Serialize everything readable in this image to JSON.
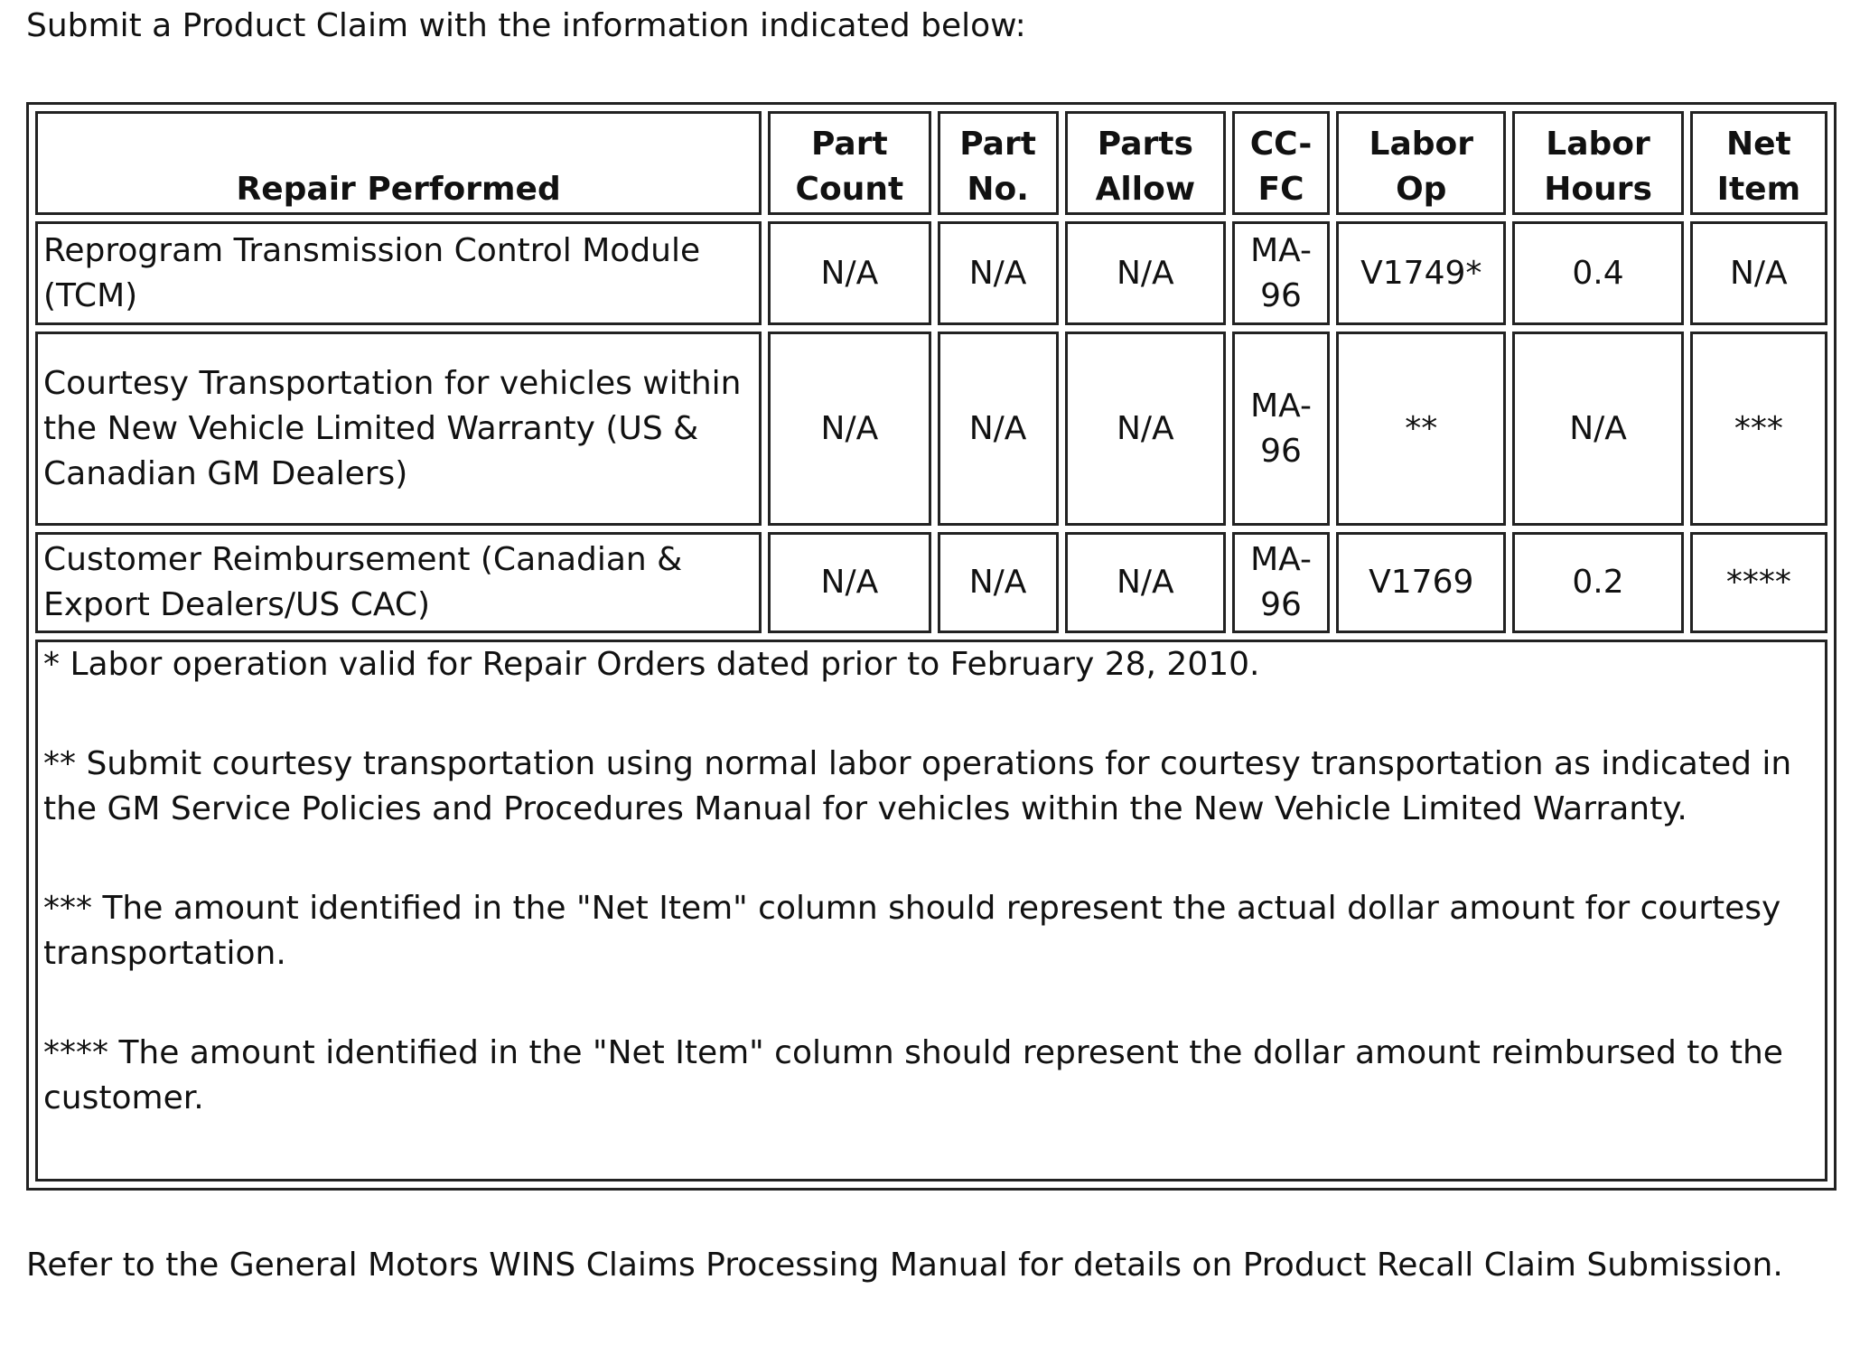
{
  "intro": "Submit a Product Claim with the information indicated below:",
  "table": {
    "headers": [
      {
        "line1": "",
        "line2": "Repair Performed"
      },
      {
        "line1": "Part",
        "line2": "Count"
      },
      {
        "line1": "Part",
        "line2": "No."
      },
      {
        "line1": "Parts",
        "line2": "Allow"
      },
      {
        "line1": "CC-",
        "line2": "FC"
      },
      {
        "line1": "Labor",
        "line2": "Op"
      },
      {
        "line1": "Labor",
        "line2": "Hours"
      },
      {
        "line1": "Net",
        "line2": "Item"
      }
    ],
    "rows": [
      {
        "repair": "Reprogram Transmission Control Module (TCM)",
        "part_count": "N/A",
        "part_no": "N/A",
        "parts_allow": "N/A",
        "ccfc_1": "MA-",
        "ccfc_2": "96",
        "labor_op": "V1749*",
        "labor_hours": "0.4",
        "net_item": "N/A"
      },
      {
        "repair": "Courtesy Transportation for vehicles within the New Vehicle Limited Warranty (US & Canadian GM Dealers)",
        "part_count": "N/A",
        "part_no": "N/A",
        "parts_allow": "N/A",
        "ccfc_1": "MA-",
        "ccfc_2": "96",
        "labor_op": "**",
        "labor_hours": "N/A",
        "net_item": "***"
      },
      {
        "repair": "Customer Reimbursement (Canadian & Export Dealers/US CAC)",
        "part_count": "N/A",
        "part_no": "N/A",
        "parts_allow": "N/A",
        "ccfc_1": "MA-",
        "ccfc_2": "96",
        "labor_op": "V1769",
        "labor_hours": "0.2",
        "net_item": "****"
      }
    ],
    "notes": [
      "* Labor operation valid for Repair Orders dated prior to February 28, 2010.",
      "** Submit courtesy transportation using normal labor operations for courtesy transportation as indicated in the GM Service Policies and Procedures Manual for vehicles within the New Vehicle Limited Warranty.",
      "*** The amount identified in the \"Net Item\" column should represent the actual dollar amount for courtesy transportation.",
      "**** The amount identified in the \"Net Item\" column should represent the dollar amount reimbursed to the customer."
    ]
  },
  "footer": "Refer to the General Motors WINS Claims Processing Manual for details on Product Recall Claim Submission."
}
